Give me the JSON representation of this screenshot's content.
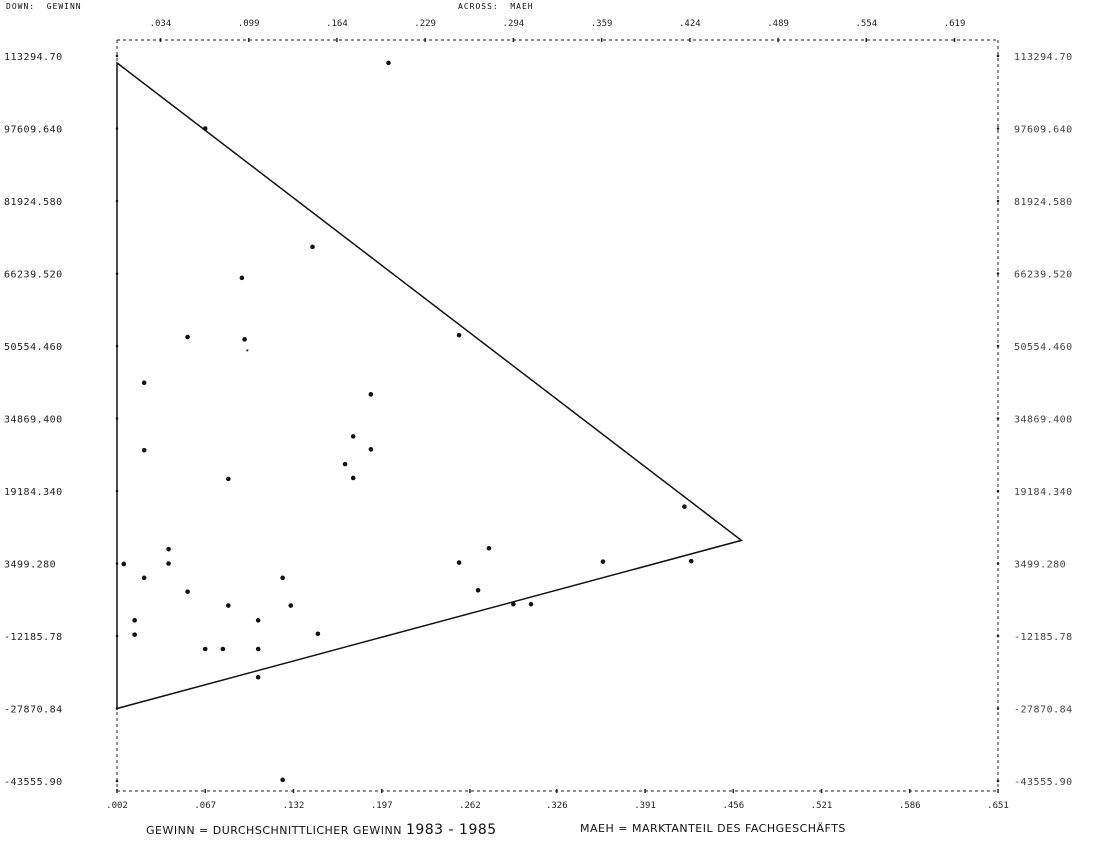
{
  "header": {
    "down_label": "DOWN:  GEWINN",
    "across_label": "ACROSS:  MAEH"
  },
  "captions": {
    "left_prefix": "GEWINN = DURCHSCHNITTLICHER GEWINN ",
    "left_years": "1983 - 1985",
    "right": "MAEH = MARKTANTEIL DES FACHGESCHÄFTS"
  },
  "chart_data": {
    "type": "scatter",
    "xlabel": "MAEH",
    "ylabel": "GEWINN",
    "xlim": [
      0.002,
      0.651
    ],
    "ylim": [
      -43555.9,
      113294.7
    ],
    "top_ticks": [
      ".034",
      ".099",
      ".164",
      ".229",
      ".294",
      ".359",
      ".424",
      ".489",
      ".554",
      ".619"
    ],
    "top_tick_values": [
      0.034,
      0.099,
      0.164,
      0.229,
      0.294,
      0.359,
      0.424,
      0.489,
      0.554,
      0.619
    ],
    "bottom_ticks": [
      ".002",
      ".067",
      ".132",
      ".197",
      ".262",
      ".326",
      ".391",
      ".456",
      ".521",
      ".586",
      ".651"
    ],
    "bottom_tick_values": [
      0.002,
      0.067,
      0.132,
      0.197,
      0.262,
      0.326,
      0.391,
      0.456,
      0.521,
      0.586,
      0.651
    ],
    "left_ticks": [
      "113294.70",
      "97609.640",
      "81924.580",
      "66239.520",
      "50554.460",
      "34869.400",
      "19184.340",
      "3499.280",
      "-12185.78",
      "-27870.84",
      "-43555.90"
    ],
    "right_ticks": [
      "113294.70",
      "97609.640",
      "81924.580",
      "66239.520",
      "50554.460",
      "34869.400",
      "19184.340",
      "3499.280",
      "-12185.78",
      "-27870.84",
      "-43555.90"
    ],
    "y_tick_values": [
      113294.7,
      97609.64,
      81924.58,
      66239.52,
      50554.46,
      34869.4,
      19184.34,
      3499.28,
      -12185.78,
      -27870.84,
      -43555.9
    ],
    "points": [
      {
        "x": 0.202,
        "y": 111800
      },
      {
        "x": 0.067,
        "y": 97600
      },
      {
        "x": 0.146,
        "y": 72000
      },
      {
        "x": 0.094,
        "y": 65300
      },
      {
        "x": 0.054,
        "y": 52500
      },
      {
        "x": 0.096,
        "y": 52000
      },
      {
        "x": 0.254,
        "y": 52900
      },
      {
        "x": 0.022,
        "y": 42600
      },
      {
        "x": 0.189,
        "y": 40100
      },
      {
        "x": 0.176,
        "y": 31000
      },
      {
        "x": 0.022,
        "y": 28000
      },
      {
        "x": 0.189,
        "y": 28200
      },
      {
        "x": 0.17,
        "y": 25000
      },
      {
        "x": 0.176,
        "y": 22000
      },
      {
        "x": 0.084,
        "y": 21800
      },
      {
        "x": 0.42,
        "y": 15800
      },
      {
        "x": 0.276,
        "y": 6800
      },
      {
        "x": 0.04,
        "y": 6600
      },
      {
        "x": 0.007,
        "y": 3400
      },
      {
        "x": 0.04,
        "y": 3500
      },
      {
        "x": 0.254,
        "y": 3700
      },
      {
        "x": 0.36,
        "y": 3900
      },
      {
        "x": 0.425,
        "y": 4000
      },
      {
        "x": 0.022,
        "y": 400
      },
      {
        "x": 0.124,
        "y": 400
      },
      {
        "x": 0.054,
        "y": -2600
      },
      {
        "x": 0.268,
        "y": -2300
      },
      {
        "x": 0.084,
        "y": -5600
      },
      {
        "x": 0.13,
        "y": -5600
      },
      {
        "x": 0.294,
        "y": -5300
      },
      {
        "x": 0.307,
        "y": -5300
      },
      {
        "x": 0.015,
        "y": -8800
      },
      {
        "x": 0.106,
        "y": -8800
      },
      {
        "x": 0.015,
        "y": -11900
      },
      {
        "x": 0.15,
        "y": -11700
      },
      {
        "x": 0.067,
        "y": -15000
      },
      {
        "x": 0.08,
        "y": -15000
      },
      {
        "x": 0.106,
        "y": -15000
      },
      {
        "x": 0.106,
        "y": -21100
      },
      {
        "x": 0.124,
        "y": -43300
      }
    ],
    "faint_points": [
      {
        "x": 0.098,
        "y": 49600
      }
    ],
    "triangle": [
      {
        "x": 0.002,
        "y": 111800
      },
      {
        "x": 0.462,
        "y": 8500
      },
      {
        "x": 0.002,
        "y": -27870.84
      }
    ],
    "grid": false
  }
}
